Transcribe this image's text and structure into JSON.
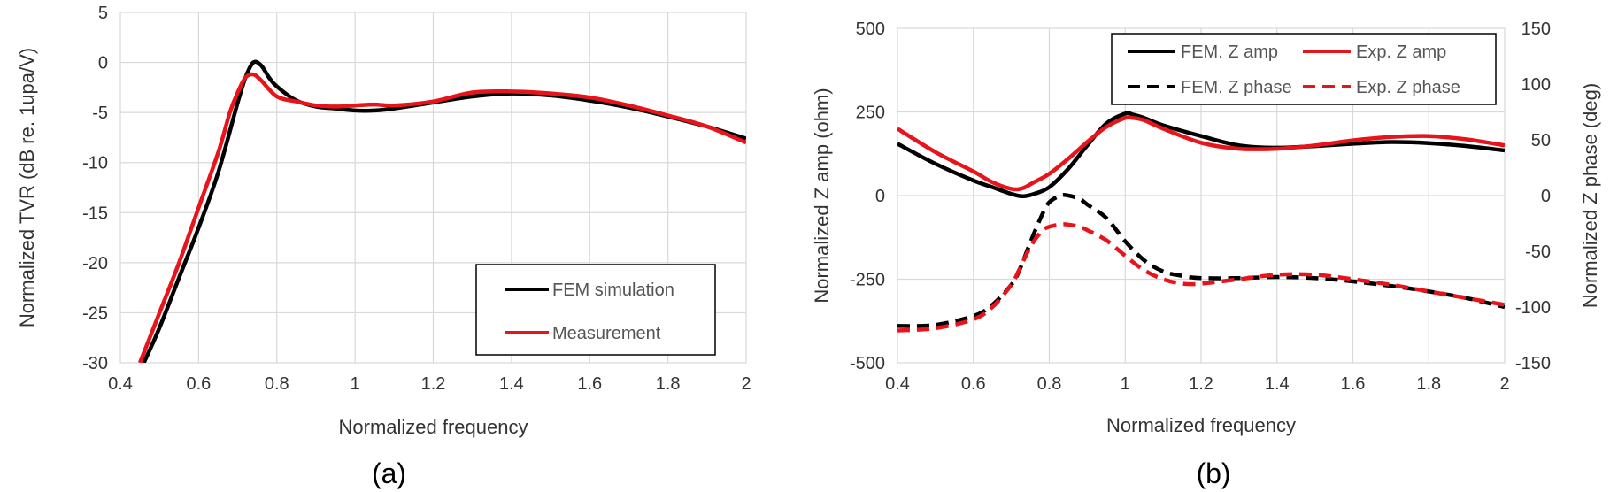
{
  "colors": {
    "fem": "#000000",
    "exp": "#e8141b",
    "grid": "#d9d9d9"
  },
  "chart_data": [
    {
      "type": "line",
      "panel_label": "(a)",
      "xlabel": "Normalized frequency",
      "ylabel": "Normalized TVR (dB re. 1upa/V)",
      "xlim": [
        0.4,
        2.0
      ],
      "ylim": [
        -30,
        5
      ],
      "xticks": [
        0.4,
        0.6,
        0.8,
        1,
        1.2,
        1.4,
        1.6,
        1.8,
        2
      ],
      "xtick_labels": [
        "0.4",
        "0.6",
        "0.8",
        "1",
        "1.2",
        "1.4",
        "1.6",
        "1.8",
        "2"
      ],
      "yticks": [
        5,
        0,
        -5,
        -10,
        -15,
        -20,
        -25,
        -30
      ],
      "ytick_labels": [
        "5",
        "0",
        "-5",
        "-10",
        "-15",
        "-20",
        "-25",
        "-30"
      ],
      "grid": true,
      "legend_position": "bottom-right",
      "series": [
        {
          "name": "FEM simulation",
          "color": "#000000",
          "dash": "solid",
          "x": [
            0.46,
            0.5,
            0.55,
            0.6,
            0.65,
            0.7,
            0.72,
            0.74,
            0.76,
            0.78,
            0.8,
            0.85,
            0.9,
            0.95,
            1.0,
            1.05,
            1.1,
            1.2,
            1.3,
            1.4,
            1.5,
            1.6,
            1.7,
            1.8,
            1.9,
            2.0
          ],
          "y": [
            -30,
            -26.5,
            -21.5,
            -16.5,
            -11,
            -4,
            -1.5,
            0,
            -0.3,
            -1.5,
            -2.4,
            -3.8,
            -4.4,
            -4.6,
            -4.8,
            -4.8,
            -4.6,
            -4.0,
            -3.4,
            -3.1,
            -3.3,
            -3.8,
            -4.5,
            -5.4,
            -6.4,
            -7.6
          ]
        },
        {
          "name": "Measurement",
          "color": "#e8141b",
          "dash": "solid",
          "x": [
            0.45,
            0.5,
            0.55,
            0.6,
            0.65,
            0.68,
            0.7,
            0.72,
            0.74,
            0.76,
            0.8,
            0.85,
            0.9,
            0.95,
            1.0,
            1.05,
            1.1,
            1.2,
            1.3,
            1.4,
            1.5,
            1.6,
            1.7,
            1.8,
            1.9,
            2.0
          ],
          "y": [
            -30,
            -25,
            -20,
            -14.5,
            -9,
            -5,
            -3,
            -1.5,
            -1.2,
            -1.8,
            -3.4,
            -3.9,
            -4.3,
            -4.4,
            -4.3,
            -4.2,
            -4.3,
            -3.9,
            -3.0,
            -2.9,
            -3.1,
            -3.5,
            -4.3,
            -5.3,
            -6.4,
            -8.0
          ]
        }
      ]
    },
    {
      "type": "line",
      "panel_label": "(b)",
      "xlabel": "Normalized frequency",
      "ylabel": "Normalized Z amp (ohm)",
      "y2label": "Normalized Z phase (deg)",
      "xlim": [
        0.4,
        2.0
      ],
      "ylim": [
        -500,
        500
      ],
      "y2lim": [
        -150,
        150
      ],
      "xticks": [
        0.4,
        0.6,
        0.8,
        1,
        1.2,
        1.4,
        1.6,
        1.8,
        2
      ],
      "xtick_labels": [
        "0.4",
        "0.6",
        "0.8",
        "1",
        "1.2",
        "1.4",
        "1.6",
        "1.8",
        "2"
      ],
      "yticks": [
        500,
        250,
        0,
        -250,
        -500
      ],
      "ytick_labels": [
        "500",
        "250",
        "0",
        "-250",
        "-500"
      ],
      "y2ticks": [
        150,
        100,
        50,
        0,
        -50,
        -100,
        -150
      ],
      "y2tick_labels": [
        "150",
        "100",
        "50",
        "0",
        "-50",
        "-100",
        "-150"
      ],
      "grid": true,
      "legend_position": "top-right",
      "series": [
        {
          "name": "FEM. Z amp",
          "color": "#000000",
          "dash": "solid",
          "axis": "y",
          "x": [
            0.4,
            0.5,
            0.6,
            0.65,
            0.7,
            0.73,
            0.76,
            0.8,
            0.85,
            0.9,
            0.95,
            1.0,
            1.02,
            1.05,
            1.1,
            1.2,
            1.3,
            1.4,
            1.5,
            1.6,
            1.7,
            1.8,
            1.9,
            2.0
          ],
          "y": [
            155,
            95,
            45,
            25,
            5,
            -2,
            5,
            25,
            80,
            150,
            215,
            245,
            242,
            232,
            210,
            178,
            150,
            143,
            148,
            155,
            160,
            157,
            148,
            135
          ]
        },
        {
          "name": "Exp. Z amp",
          "color": "#e8141b",
          "dash": "solid",
          "axis": "y",
          "x": [
            0.4,
            0.5,
            0.6,
            0.65,
            0.7,
            0.73,
            0.76,
            0.8,
            0.85,
            0.9,
            0.95,
            1.0,
            1.02,
            1.05,
            1.1,
            1.2,
            1.3,
            1.4,
            1.5,
            1.6,
            1.7,
            1.8,
            1.9,
            2.0
          ],
          "y": [
            200,
            130,
            72,
            40,
            20,
            22,
            40,
            65,
            110,
            160,
            205,
            232,
            232,
            225,
            200,
            158,
            140,
            140,
            150,
            165,
            175,
            178,
            168,
            150
          ]
        },
        {
          "name": "FEM. Z phase",
          "color": "#000000",
          "dash": "dashed",
          "axis": "y2",
          "x": [
            0.4,
            0.5,
            0.6,
            0.65,
            0.7,
            0.72,
            0.75,
            0.78,
            0.8,
            0.83,
            0.85,
            0.88,
            0.9,
            0.95,
            1.0,
            1.05,
            1.1,
            1.15,
            1.2,
            1.3,
            1.4,
            1.5,
            1.6,
            1.7,
            1.8,
            1.9,
            2.0
          ],
          "y": [
            -117,
            -116,
            -108,
            -98,
            -80,
            -68,
            -42,
            -18,
            -6,
            0,
            0,
            -3,
            -8,
            -20,
            -41,
            -58,
            -68,
            -72,
            -74,
            -74,
            -73,
            -74,
            -77,
            -81,
            -86,
            -92,
            -100
          ]
        },
        {
          "name": "Exp. Z phase",
          "color": "#e8141b",
          "dash": "dashed",
          "axis": "y2",
          "x": [
            0.4,
            0.5,
            0.6,
            0.65,
            0.7,
            0.72,
            0.75,
            0.78,
            0.8,
            0.83,
            0.85,
            0.88,
            0.9,
            0.95,
            1.0,
            1.05,
            1.1,
            1.15,
            1.2,
            1.3,
            1.4,
            1.5,
            1.6,
            1.7,
            1.8,
            1.9,
            2.0
          ],
          "y": [
            -121,
            -119,
            -111,
            -100,
            -80,
            -67,
            -46,
            -32,
            -28,
            -26,
            -26,
            -28,
            -31,
            -40,
            -54,
            -67,
            -75,
            -79,
            -79,
            -75,
            -71,
            -71,
            -75,
            -80,
            -86,
            -92,
            -98
          ]
        }
      ]
    }
  ]
}
